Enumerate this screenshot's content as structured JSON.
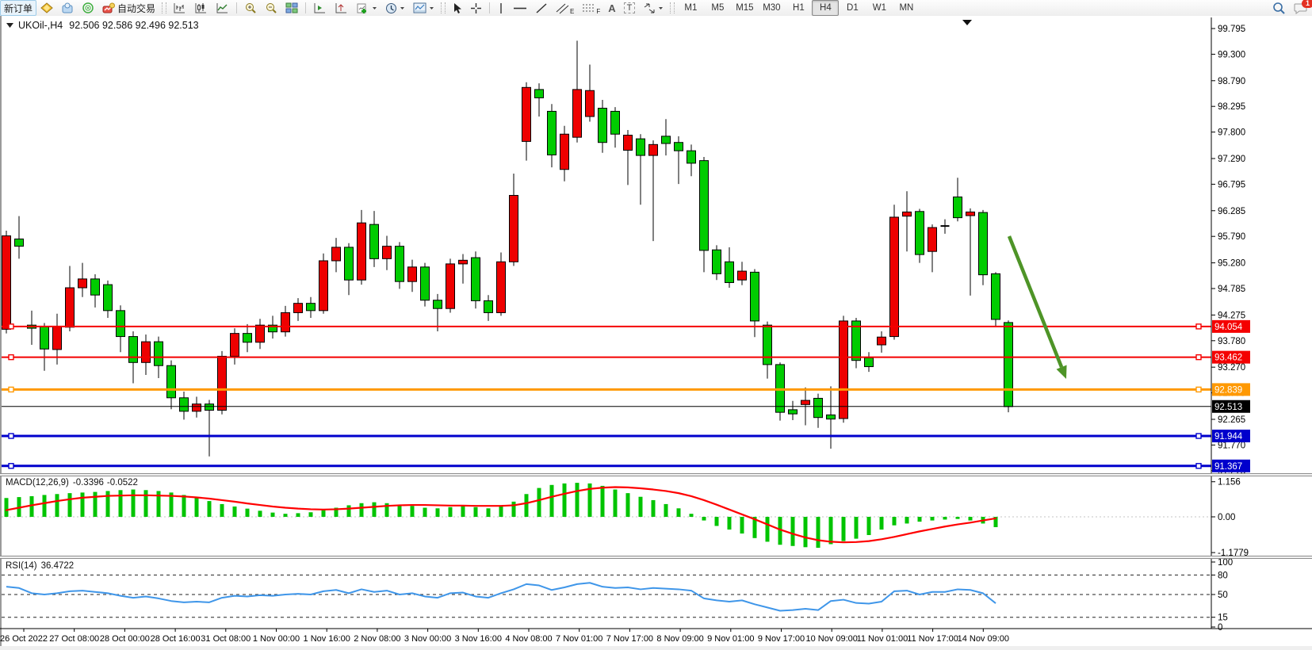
{
  "toolbar": {
    "new_order_label": "新订单",
    "autotrading_label": "自动交易",
    "timeframes": [
      "M1",
      "M5",
      "M15",
      "M30",
      "H1",
      "H4",
      "D1",
      "W1",
      "MN"
    ],
    "active_timeframe": "H4",
    "notification_count": "1",
    "channel_letter": "E",
    "fibo_letter": "F",
    "text_letter": "A",
    "label_letter": "T"
  },
  "chart": {
    "symbol_title": "UKOil-,H4",
    "ohlc_text": "92.506 92.586 92.496 92.513",
    "current_price_label": "92.513",
    "price_axis_ticks": [
      "99.795",
      "99.300",
      "98.790",
      "98.295",
      "97.800",
      "97.290",
      "96.795",
      "96.285",
      "95.790",
      "95.280",
      "94.785",
      "94.275",
      "93.780",
      "93.270",
      "92.775",
      "92.265",
      "91.770",
      "91.275"
    ],
    "hlines": [
      {
        "price": 94.054,
        "label": "94.054",
        "color": "#f40000",
        "width": 2,
        "markers": true
      },
      {
        "price": 93.462,
        "label": "93.462",
        "color": "#f40000",
        "width": 2,
        "markers": true
      },
      {
        "price": 92.839,
        "label": "92.839",
        "color": "#ff9902",
        "width": 3,
        "markers": true
      },
      {
        "price": 92.513,
        "label": "92.513",
        "color": "#000000",
        "width": 1,
        "markers": false
      },
      {
        "price": 91.944,
        "label": "91.944",
        "color": "#0000cc",
        "width": 3,
        "markers": true
      },
      {
        "price": 91.367,
        "label": "91.367",
        "color": "#0000cc",
        "width": 3,
        "markers": true
      }
    ],
    "time_labels": [
      "26 Oct 2022",
      "27 Oct 08:00",
      "28 Oct 00:00",
      "28 Oct 16:00",
      "31 Oct 08:00",
      "1 Nov 00:00",
      "1 Nov 16:00",
      "2 Nov 08:00",
      "3 Nov 00:00",
      "3 Nov 16:00",
      "4 Nov 08:00",
      "7 Nov 01:00",
      "7 Nov 17:00",
      "8 Nov 09:00",
      "9 Nov 01:00",
      "9 Nov 17:00",
      "10 Nov 09:00",
      "11 Nov 01:00",
      "11 Nov 17:00",
      "14 Nov 09:00"
    ],
    "bull_color": "#ee0000",
    "bear_color": "#00cc00",
    "arrow_color": "#4e9427"
  },
  "macd": {
    "label": "MACD(12,26,9)",
    "main_value": "-0.3396",
    "signal_value": "-0.0522",
    "axis_ticks": [
      "1.156",
      "0.00",
      "-1.1779"
    ],
    "axis_values": [
      1.156,
      0.0,
      -1.1779
    ]
  },
  "rsi": {
    "label": "RSI(14)",
    "value": "36.4722",
    "axis_ticks": [
      "100",
      "80",
      "50",
      "15",
      "0"
    ],
    "axis_values": [
      100,
      80,
      50,
      15,
      0
    ],
    "levels": [
      80,
      50,
      15
    ]
  },
  "chart_data": {
    "type": "candlestick",
    "symbol": "UKOil-",
    "timeframe": "H4",
    "price_range": [
      91.2,
      99.9
    ],
    "candles": [
      [
        94.0,
        95.9,
        93.92,
        95.8
      ],
      [
        95.74,
        96.18,
        95.36,
        95.6
      ],
      [
        94.08,
        94.36,
        93.7,
        94.02
      ],
      [
        94.05,
        94.12,
        93.2,
        93.62
      ],
      [
        93.61,
        94.3,
        93.32,
        94.05
      ],
      [
        94.04,
        95.22,
        93.96,
        94.8
      ],
      [
        94.8,
        95.28,
        94.62,
        94.97
      ],
      [
        94.97,
        95.06,
        94.42,
        94.66
      ],
      [
        94.86,
        94.94,
        94.22,
        94.36
      ],
      [
        94.36,
        94.46,
        93.56,
        93.86
      ],
      [
        93.86,
        93.96,
        92.96,
        93.36
      ],
      [
        93.36,
        93.9,
        93.12,
        93.76
      ],
      [
        93.76,
        93.86,
        93.06,
        93.3
      ],
      [
        93.3,
        93.4,
        92.46,
        92.68
      ],
      [
        92.68,
        92.8,
        92.26,
        92.42
      ],
      [
        92.42,
        92.7,
        92.3,
        92.56
      ],
      [
        92.56,
        92.64,
        91.55,
        92.44
      ],
      [
        92.44,
        93.58,
        92.36,
        93.48
      ],
      [
        93.48,
        94.02,
        93.32,
        93.92
      ],
      [
        93.92,
        94.1,
        93.56,
        93.75
      ],
      [
        93.75,
        94.2,
        93.62,
        94.08
      ],
      [
        94.08,
        94.26,
        93.82,
        93.95
      ],
      [
        93.95,
        94.45,
        93.86,
        94.32
      ],
      [
        94.32,
        94.6,
        94.16,
        94.5
      ],
      [
        94.5,
        94.62,
        94.22,
        94.36
      ],
      [
        94.36,
        95.46,
        94.3,
        95.32
      ],
      [
        95.32,
        95.76,
        95.1,
        95.58
      ],
      [
        95.58,
        95.66,
        94.66,
        94.95
      ],
      [
        94.95,
        96.3,
        94.86,
        96.05
      ],
      [
        96.02,
        96.28,
        95.2,
        95.36
      ],
      [
        95.36,
        95.8,
        95.14,
        95.6
      ],
      [
        95.6,
        95.68,
        94.78,
        94.92
      ],
      [
        94.92,
        95.34,
        94.72,
        95.2
      ],
      [
        95.2,
        95.28,
        94.44,
        94.56
      ],
      [
        94.56,
        94.68,
        93.96,
        94.4
      ],
      [
        94.4,
        95.36,
        94.32,
        95.26
      ],
      [
        95.26,
        95.45,
        94.88,
        95.33
      ],
      [
        95.38,
        95.5,
        94.4,
        94.55
      ],
      [
        94.55,
        94.66,
        94.16,
        94.32
      ],
      [
        94.32,
        95.48,
        94.26,
        95.3
      ],
      [
        95.3,
        97.0,
        95.22,
        96.58
      ],
      [
        97.62,
        98.76,
        97.25,
        98.66
      ],
      [
        98.62,
        98.74,
        98.1,
        98.46
      ],
      [
        98.2,
        98.34,
        97.12,
        97.36
      ],
      [
        97.08,
        97.92,
        96.85,
        97.76
      ],
      [
        97.7,
        99.56,
        97.6,
        98.62
      ],
      [
        98.1,
        99.1,
        98.0,
        98.6
      ],
      [
        98.26,
        98.42,
        97.4,
        97.6
      ],
      [
        98.2,
        98.28,
        97.5,
        97.76
      ],
      [
        97.45,
        97.84,
        96.78,
        97.74
      ],
      [
        97.67,
        97.76,
        96.4,
        97.35
      ],
      [
        97.35,
        97.64,
        95.7,
        97.56
      ],
      [
        97.72,
        98.05,
        97.35,
        97.58
      ],
      [
        97.6,
        97.72,
        96.8,
        97.44
      ],
      [
        97.44,
        97.56,
        96.95,
        97.2
      ],
      [
        97.25,
        97.32,
        95.1,
        95.52
      ],
      [
        95.53,
        95.62,
        94.95,
        95.07
      ],
      [
        95.3,
        95.58,
        94.8,
        94.9
      ],
      [
        94.95,
        95.3,
        94.85,
        95.12
      ],
      [
        95.1,
        95.16,
        93.85,
        94.16
      ],
      [
        94.08,
        94.15,
        93.05,
        93.32
      ],
      [
        93.32,
        93.36,
        92.24,
        92.4
      ],
      [
        92.45,
        92.62,
        92.25,
        92.37
      ],
      [
        92.55,
        92.88,
        92.15,
        92.63
      ],
      [
        92.67,
        92.76,
        92.1,
        92.3
      ],
      [
        92.35,
        92.9,
        91.7,
        92.27
      ],
      [
        92.28,
        94.26,
        92.2,
        94.16
      ],
      [
        94.16,
        94.22,
        93.25,
        93.4
      ],
      [
        93.45,
        93.56,
        93.18,
        93.28
      ],
      [
        93.7,
        93.96,
        93.55,
        93.85
      ],
      [
        93.86,
        96.4,
        93.8,
        96.16
      ],
      [
        96.18,
        96.66,
        95.5,
        96.26
      ],
      [
        96.27,
        96.32,
        95.28,
        95.44
      ],
      [
        95.5,
        96.02,
        95.1,
        95.96
      ],
      [
        95.98,
        96.12,
        95.84,
        95.99
      ],
      [
        96.55,
        96.92,
        96.08,
        96.15
      ],
      [
        96.19,
        96.33,
        94.65,
        96.26
      ],
      [
        96.25,
        96.3,
        94.85,
        95.05
      ],
      [
        95.07,
        95.1,
        94.05,
        94.19
      ],
      [
        94.13,
        94.17,
        92.4,
        92.51
      ]
    ],
    "macd_histogram": [
      0.62,
      0.65,
      0.68,
      0.72,
      0.75,
      0.78,
      0.8,
      0.82,
      0.85,
      0.88,
      0.9,
      0.88,
      0.85,
      0.8,
      0.72,
      0.62,
      0.52,
      0.42,
      0.34,
      0.27,
      0.2,
      0.14,
      0.1,
      0.12,
      0.15,
      0.22,
      0.3,
      0.38,
      0.45,
      0.48,
      0.45,
      0.4,
      0.36,
      0.3,
      0.28,
      0.32,
      0.36,
      0.32,
      0.28,
      0.34,
      0.5,
      0.75,
      0.95,
      1.05,
      1.1,
      1.12,
      1.1,
      1.02,
      0.9,
      0.78,
      0.66,
      0.55,
      0.42,
      0.28,
      0.1,
      -0.12,
      -0.3,
      -0.42,
      -0.55,
      -0.7,
      -0.82,
      -0.92,
      -0.96,
      -1.0,
      -1.02,
      -0.9,
      -0.8,
      -0.72,
      -0.6,
      -0.42,
      -0.28,
      -0.22,
      -0.16,
      -0.12,
      -0.09,
      -0.07,
      -0.12,
      -0.22,
      -0.34
    ],
    "macd_signal": [
      0.22,
      0.3,
      0.38,
      0.45,
      0.52,
      0.58,
      0.63,
      0.66,
      0.69,
      0.7,
      0.71,
      0.71,
      0.7,
      0.69,
      0.67,
      0.64,
      0.6,
      0.55,
      0.5,
      0.44,
      0.39,
      0.34,
      0.3,
      0.27,
      0.25,
      0.24,
      0.25,
      0.27,
      0.3,
      0.33,
      0.36,
      0.38,
      0.39,
      0.39,
      0.38,
      0.37,
      0.37,
      0.36,
      0.36,
      0.36,
      0.38,
      0.45,
      0.55,
      0.66,
      0.76,
      0.85,
      0.92,
      0.96,
      0.98,
      0.97,
      0.94,
      0.9,
      0.85,
      0.78,
      0.68,
      0.55,
      0.4,
      0.24,
      0.08,
      -0.08,
      -0.25,
      -0.42,
      -0.56,
      -0.68,
      -0.77,
      -0.82,
      -0.84,
      -0.83,
      -0.8,
      -0.74,
      -0.66,
      -0.57,
      -0.48,
      -0.4,
      -0.32,
      -0.25,
      -0.19,
      -0.12,
      -0.05
    ],
    "rsi_series": [
      62,
      60,
      52,
      50,
      52,
      55,
      56,
      54,
      52,
      48,
      45,
      47,
      44,
      40,
      38,
      39,
      38,
      45,
      48,
      47,
      49,
      48,
      50,
      51,
      50,
      55,
      57,
      52,
      58,
      54,
      56,
      50,
      52,
      47,
      45,
      52,
      53,
      47,
      45,
      52,
      58,
      66,
      64,
      57,
      61,
      66,
      68,
      62,
      60,
      61,
      58,
      60,
      59,
      58,
      56,
      44,
      41,
      39,
      41,
      35,
      30,
      25,
      26,
      28,
      26,
      40,
      42,
      37,
      36,
      39,
      55,
      56,
      50,
      54,
      54,
      58,
      57,
      52,
      36.5
    ],
    "annotation_arrow": {
      "from": [
        1273,
        298
      ],
      "to": [
        1345,
        478
      ]
    }
  }
}
